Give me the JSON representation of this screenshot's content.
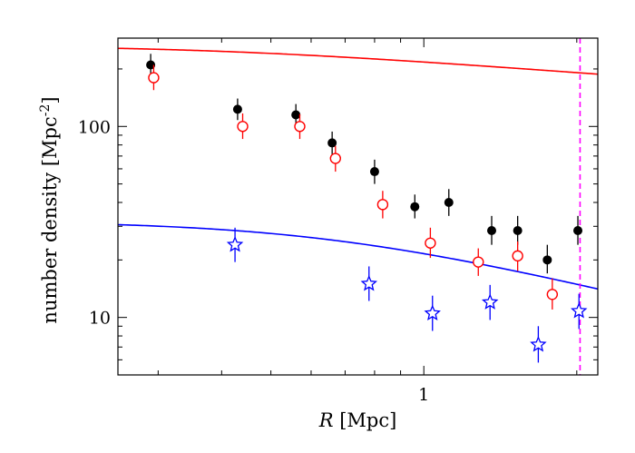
{
  "chart_data": {
    "type": "scatter",
    "x_scale": "log",
    "y_scale": "log",
    "xlim": [
      0.25,
      2.2
    ],
    "ylim": [
      5,
      290
    ],
    "xlabel": {
      "italic": "R",
      "rest": " [Mpc]"
    },
    "ylabel": {
      "main": "number density [Mpc",
      "sup": "-2",
      "close": "]"
    },
    "x_tick_labels": [
      {
        "value": 1,
        "label": "1"
      }
    ],
    "y_tick_labels": [
      {
        "value": 10,
        "label": "10"
      },
      {
        "value": 100,
        "label": "100"
      }
    ],
    "series": [
      {
        "marker": "filled-circle",
        "color": "#000000",
        "points": [
          {
            "x": 0.29,
            "y": 210,
            "lo": 185,
            "hi": 240
          },
          {
            "x": 0.43,
            "y": 123,
            "lo": 108,
            "hi": 140
          },
          {
            "x": 0.56,
            "y": 115,
            "lo": 100,
            "hi": 131
          },
          {
            "x": 0.66,
            "y": 82,
            "lo": 71,
            "hi": 94
          },
          {
            "x": 0.8,
            "y": 58,
            "lo": 50,
            "hi": 67
          },
          {
            "x": 0.96,
            "y": 38,
            "lo": 33,
            "hi": 44
          },
          {
            "x": 1.12,
            "y": 40,
            "lo": 34,
            "hi": 47
          },
          {
            "x": 1.36,
            "y": 28.5,
            "lo": 24,
            "hi": 34
          },
          {
            "x": 1.53,
            "y": 28.5,
            "lo": 24,
            "hi": 34
          },
          {
            "x": 1.75,
            "y": 20,
            "lo": 17,
            "hi": 24
          },
          {
            "x": 2.01,
            "y": 28.5,
            "lo": 24,
            "hi": 34
          }
        ]
      },
      {
        "marker": "open-circle",
        "color": "#ff0000",
        "points": [
          {
            "x": 0.294,
            "y": 180,
            "lo": 155,
            "hi": 210
          },
          {
            "x": 0.44,
            "y": 100,
            "lo": 86,
            "hi": 117
          },
          {
            "x": 0.57,
            "y": 100,
            "lo": 86,
            "hi": 116
          },
          {
            "x": 0.67,
            "y": 68,
            "lo": 58,
            "hi": 79
          },
          {
            "x": 0.83,
            "y": 39,
            "lo": 33,
            "hi": 46
          },
          {
            "x": 1.03,
            "y": 24.5,
            "lo": 20.5,
            "hi": 29.5
          },
          {
            "x": 1.28,
            "y": 19.5,
            "lo": 16.5,
            "hi": 23
          },
          {
            "x": 1.53,
            "y": 21,
            "lo": 17.5,
            "hi": 25
          },
          {
            "x": 1.79,
            "y": 13.2,
            "lo": 11,
            "hi": 16
          }
        ]
      },
      {
        "marker": "open-star",
        "color": "#0000ff",
        "points": [
          {
            "x": 0.425,
            "y": 24,
            "lo": 19.5,
            "hi": 29.5
          },
          {
            "x": 0.78,
            "y": 15,
            "lo": 12.2,
            "hi": 18.5
          },
          {
            "x": 1.04,
            "y": 10.5,
            "lo": 8.5,
            "hi": 13
          },
          {
            "x": 1.35,
            "y": 12,
            "lo": 9.7,
            "hi": 14.8
          },
          {
            "x": 1.68,
            "y": 7.2,
            "lo": 5.8,
            "hi": 9
          },
          {
            "x": 2.02,
            "y": 10.8,
            "lo": 8.7,
            "hi": 13.3
          }
        ]
      }
    ],
    "curves": [
      {
        "color": "#000000",
        "model": "beta",
        "n0": 295,
        "rc": 0.4,
        "beta": 0.28
      },
      {
        "color": "#ff0000",
        "model": "beta",
        "n0": 265,
        "rc": 0.4,
        "beta": 0.4
      },
      {
        "color": "#0000ff",
        "model": "beta",
        "n0": 32,
        "rc": 0.65,
        "beta": 0.55
      }
    ],
    "vline": {
      "x": 2.03,
      "color": "#ff00ff",
      "style": "dashed"
    }
  }
}
